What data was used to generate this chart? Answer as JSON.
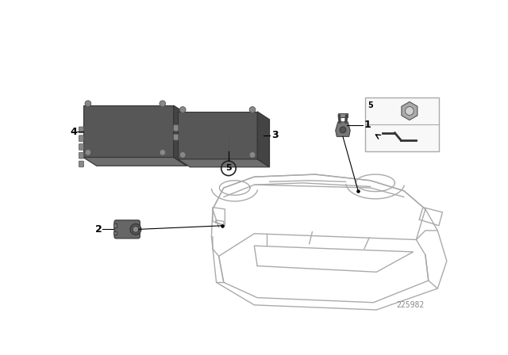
{
  "bg_color": "#ffffff",
  "part_number": "225982",
  "line_color": "#000000",
  "car_edge_color": "#aaaaaa",
  "box_dark": "#555555",
  "box_mid": "#6e6e6e",
  "box_light": "#888888",
  "box_top": "#7a7a7a",
  "bolt_color": "#999999",
  "inset_border": "#888888"
}
